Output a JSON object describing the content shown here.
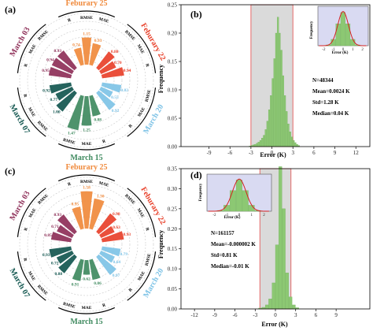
{
  "colors": {
    "feb25": "#F08A3C",
    "feb22": "#E8402A",
    "mar20": "#7EC3E6",
    "mar15": "#3F8A5F",
    "mar07": "#12564F",
    "mar03": "#8E2F58",
    "bar_green": "#8CC873",
    "band_gray": "#DADADA",
    "band_red": "#E56A6A",
    "fit_red": "#D62020",
    "inset_bg": "#D9DAF2"
  },
  "chart_data": [
    {
      "type": "polar-bar",
      "panel": "(a)",
      "dates": [
        {
          "name": "Feburary 25",
          "color": "feb25",
          "metrics": [
            "R",
            "RMSE",
            "MAE"
          ],
          "values": [
            "0.74",
            "1.15",
            "0.93"
          ]
        },
        {
          "name": "Feburary 22",
          "color": "feb22",
          "metrics": [
            "RMSE",
            "MAE",
            "R"
          ],
          "values": [
            "0.88",
            "0.70",
            "0.94"
          ]
        },
        {
          "name": "March 20",
          "color": "mar20",
          "metrics": [
            "RMSE",
            "MAE",
            "R"
          ],
          "values": [
            "0.82",
            "0.55",
            "0.92"
          ]
        },
        {
          "name": "March 15",
          "color": "mar15",
          "metrics": [
            "R",
            "MAE",
            "RMSE"
          ],
          "values": [
            "0.88",
            "1.25",
            "1.47"
          ]
        },
        {
          "name": "March 07",
          "color": "mar07",
          "metrics": [
            "RMSE",
            "MAE",
            "R"
          ],
          "values": [
            "1.00",
            "0.77",
            "0.92"
          ]
        },
        {
          "name": "March 03",
          "color": "mar03",
          "metrics": [
            "R",
            "MAE",
            "RMSE"
          ],
          "values": [
            "0.95",
            "0.94",
            "0.93"
          ]
        }
      ]
    },
    {
      "type": "bar",
      "panel": "(b)",
      "xlabel": "Error (K)",
      "ylabel": "Frequency",
      "xlim": [
        -13,
        14
      ],
      "ylim": [
        0,
        0.25
      ],
      "xticks": [
        "-9",
        "-6",
        "-3",
        "0",
        "3",
        "6",
        "9",
        "12"
      ],
      "yticks": [
        "0.00",
        "0.05",
        "0.10",
        "0.15",
        "0.20",
        "0.25"
      ],
      "band": [
        -3,
        3
      ],
      "bin_width": 0.25,
      "x_start": -3.25,
      "values": [
        0.001,
        0.002,
        0.003,
        0.004,
        0.006,
        0.008,
        0.011,
        0.015,
        0.02,
        0.03,
        0.045,
        0.065,
        0.09,
        0.12,
        0.155,
        0.2,
        0.228,
        0.2,
        0.17,
        0.125,
        0.09,
        0.062,
        0.04,
        0.026,
        0.017,
        0.011,
        0.007,
        0.004,
        0.002
      ],
      "stats": [
        "N=48344",
        "Mean=0.0024 K",
        "Std=1.28 K",
        "Median=0.04 K"
      ],
      "inset": {
        "xlabel": "Error (K)",
        "ylabel": "Frequency",
        "xticks": [
          "-2",
          "-1",
          "0",
          "1",
          "2"
        ]
      }
    },
    {
      "type": "polar-bar",
      "panel": "(c)",
      "dates": [
        {
          "name": "Feburary 25",
          "color": "feb25",
          "metrics": [
            "R",
            "RMSE",
            "MAE"
          ],
          "values": [
            "0.95",
            "1.58",
            "1.30"
          ]
        },
        {
          "name": "Feburary 22",
          "color": "feb22",
          "metrics": [
            "RMSE",
            "MAE",
            "R"
          ],
          "values": [
            "0.98",
            "0.63",
            "0.93"
          ]
        },
        {
          "name": "March 20",
          "color": "mar20",
          "metrics": [
            "RMSE",
            "MAE",
            "R"
          ],
          "values": [
            "0.79",
            "0.64",
            "0.97"
          ]
        },
        {
          "name": "March 15",
          "color": "mar15",
          "metrics": [
            "R",
            "MAE",
            "RMSE"
          ],
          "values": [
            "0.86",
            "0.62",
            "0.91"
          ]
        },
        {
          "name": "March 07",
          "color": "mar07",
          "metrics": [
            "RMSE",
            "MAE",
            "R"
          ],
          "values": [
            "0.88",
            "0.72",
            "0.93"
          ]
        },
        {
          "name": "March 03",
          "color": "mar03",
          "metrics": [
            "R",
            "MAE",
            "RMSE"
          ],
          "values": [
            "0.85",
            "0.71",
            "0.93"
          ]
        }
      ]
    },
    {
      "type": "bar",
      "panel": "(d)",
      "xlabel": "Error (K)",
      "ylabel": "Frequency",
      "xlim": [
        -14,
        14
      ],
      "ylim": [
        0,
        0.35
      ],
      "xticks": [
        "-12",
        "-9",
        "-6",
        "-3",
        "0",
        "3",
        "6",
        "9"
      ],
      "yticks": [
        "0.00",
        "0.05",
        "0.10",
        "0.15",
        "0.20",
        "0.25",
        "0.30",
        "0.35"
      ],
      "band": [
        -2.3,
        2.3
      ],
      "bin_width": 0.5,
      "x_start": -2.5,
      "values": [
        0.002,
        0.004,
        0.01,
        0.025,
        0.065,
        0.16,
        0.355,
        0.25,
        0.09,
        0.03,
        0.01,
        0.003
      ],
      "stats": [
        "N=161157",
        "Mean=-0.000002 K",
        "Std=0.81 K",
        "Median=-0.01 K"
      ],
      "inset": {
        "xlabel": "Error (K)",
        "ylabel": "Frequency",
        "xticks": [
          "-2",
          "-1",
          "0",
          "1",
          "2"
        ]
      }
    }
  ]
}
